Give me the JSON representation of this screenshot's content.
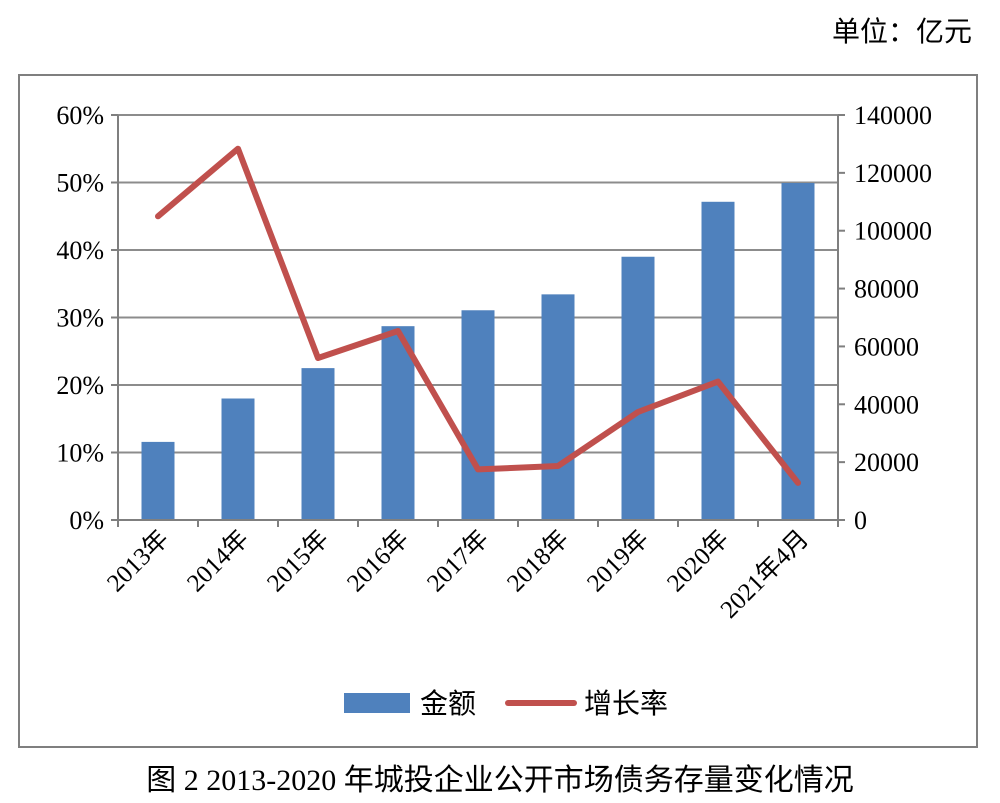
{
  "unit_label": "单位：亿元",
  "caption": "图 2 2013-2020 年城投企业公开市场债务存量变化情况",
  "chart_data": {
    "type": "bar+line",
    "title": "",
    "categories": [
      "2013年",
      "2014年",
      "2015年",
      "2016年",
      "2017年",
      "2018年",
      "2019年",
      "2020年",
      "2021年4月"
    ],
    "series": [
      {
        "name": "金额",
        "type": "bar",
        "axis": "right",
        "color": "#4f81bd",
        "values": [
          27000,
          42000,
          52500,
          67000,
          72500,
          78000,
          91000,
          110000,
          116500
        ]
      },
      {
        "name": "增长率",
        "type": "line",
        "axis": "left",
        "color": "#c0504d",
        "values": [
          0.45,
          0.55,
          0.24,
          0.28,
          0.075,
          0.08,
          0.16,
          0.205,
          0.055
        ]
      }
    ],
    "y_left": {
      "min": 0,
      "max": 0.6,
      "ticks": [
        "0%",
        "10%",
        "20%",
        "30%",
        "40%",
        "50%",
        "60%"
      ]
    },
    "y_right": {
      "min": 0,
      "max": 140000,
      "ticks": [
        "0",
        "20000",
        "40000",
        "60000",
        "80000",
        "100000",
        "120000",
        "140000"
      ]
    },
    "grid": true,
    "legend_position": "bottom"
  }
}
